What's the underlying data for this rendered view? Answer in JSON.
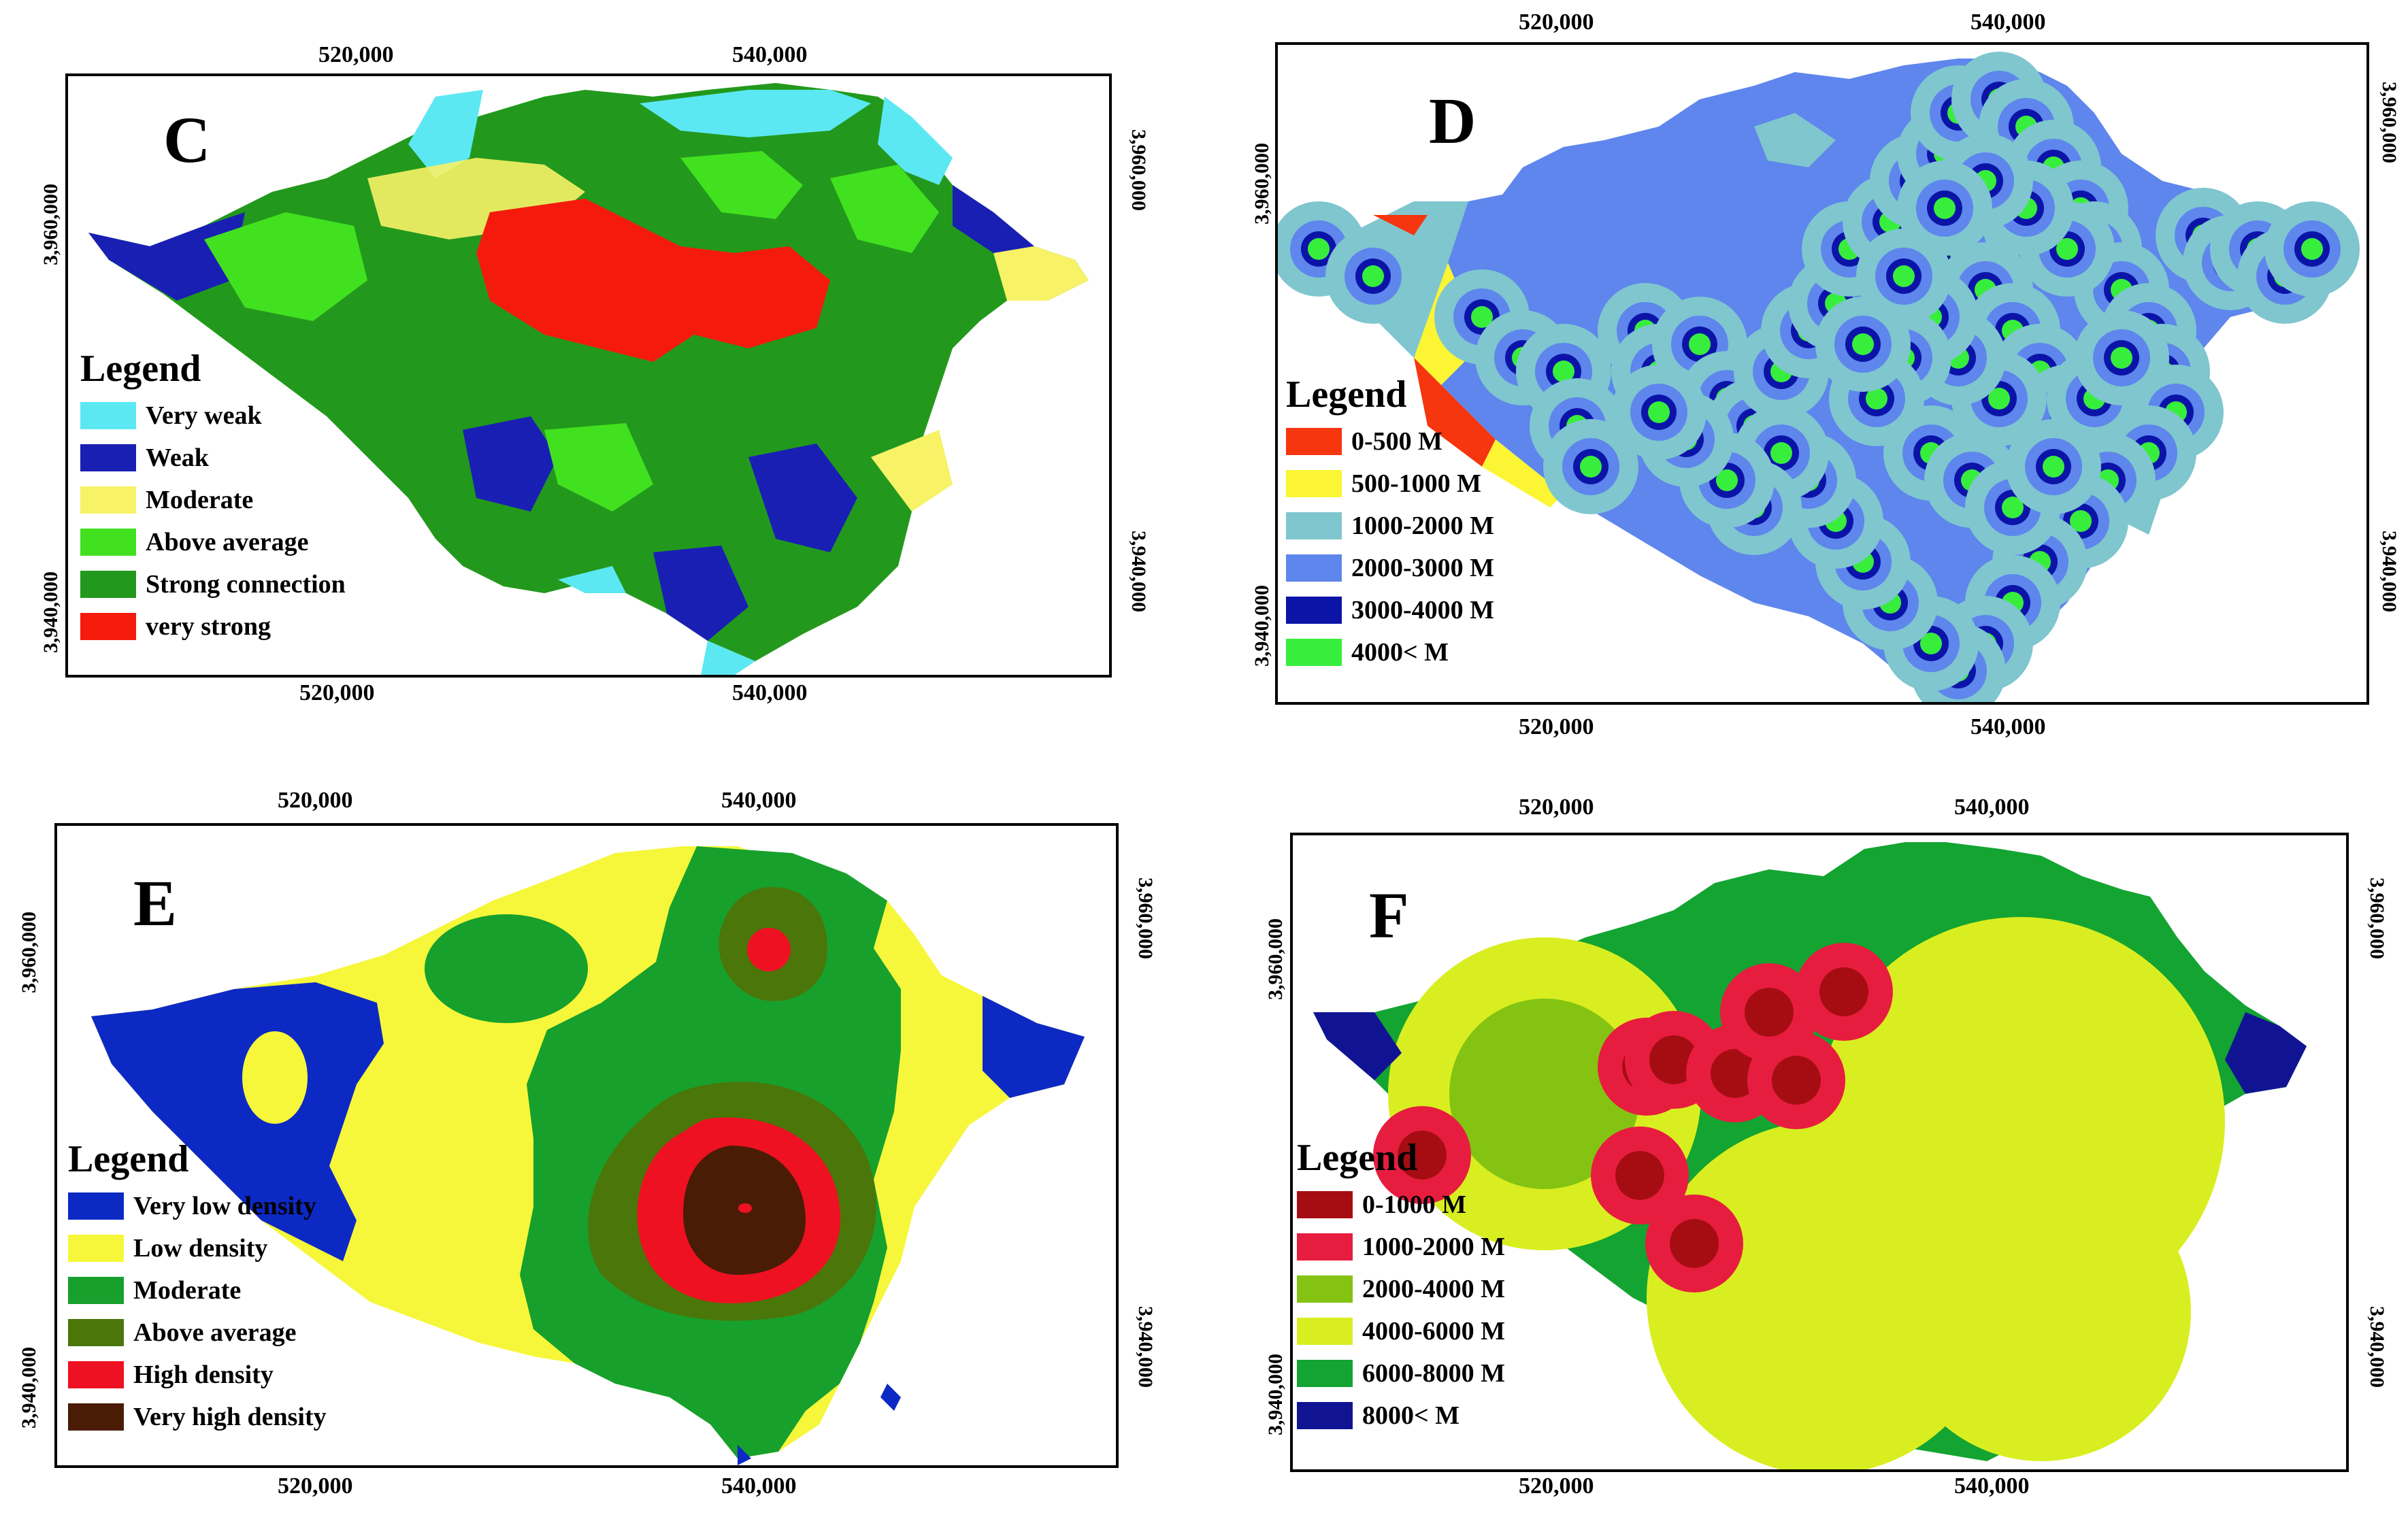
{
  "panels": [
    {
      "id": "C",
      "letter": "C",
      "x_ticks_top": [
        "520,000",
        "540,000"
      ],
      "x_ticks_bottom": [
        "520,000",
        "540,000"
      ],
      "y_ticks_left": [
        "3,960,000",
        "3,940,000"
      ],
      "y_ticks_right": [
        "3,960,000",
        "3,940,000"
      ],
      "legend_title": "Legend",
      "legend": [
        {
          "label": "Very weak",
          "color": "#5ce8f2"
        },
        {
          "label": "Weak",
          "color": "#1a1fb4"
        },
        {
          "label": "Moderate",
          "color": "#f8f267"
        },
        {
          "label": "Above average",
          "color": "#41e11f"
        },
        {
          "label": "Strong connection",
          "color": "#22991c"
        },
        {
          "label": "very strong",
          "color": "#f51b0c"
        }
      ]
    },
    {
      "id": "D",
      "letter": "D",
      "x_ticks_top": [
        "520,000",
        "540,000"
      ],
      "x_ticks_bottom": [
        "520,000",
        "540,000"
      ],
      "y_ticks_left": [
        "3,960,000",
        "3,940,000"
      ],
      "y_ticks_right": [
        "3,960,000",
        "3,940,000"
      ],
      "legend_title": "Legend",
      "legend": [
        {
          "label": "0-500 M",
          "color": "#f5360f"
        },
        {
          "label": "500-1000 M",
          "color": "#fbf534"
        },
        {
          "label": "1000-2000 M",
          "color": "#7fc6cf"
        },
        {
          "label": "2000-3000 M",
          "color": "#5e86ec"
        },
        {
          "label": "3000-4000 M",
          "color": "#0c14a8"
        },
        {
          "label": "4000< M",
          "color": "#38ee3d"
        }
      ]
    },
    {
      "id": "E",
      "letter": "E",
      "x_ticks_top": [
        "520,000",
        "540,000"
      ],
      "x_ticks_bottom": [
        "520,000",
        "540,000"
      ],
      "y_ticks_left": [
        "3,960,000",
        "3,940,000"
      ],
      "y_ticks_right": [
        "3,960,000",
        "3,940,000"
      ],
      "legend_title": "Legend",
      "legend": [
        {
          "label": "Very low density",
          "color": "#0d29c4"
        },
        {
          "label": "Low density",
          "color": "#f6f73a"
        },
        {
          "label": "Moderate",
          "color": "#17a02c"
        },
        {
          "label": "Above average",
          "color": "#4b760a"
        },
        {
          "label": "High density",
          "color": "#ee1121"
        },
        {
          "label": "Very high density",
          "color": "#4a1c05"
        }
      ]
    },
    {
      "id": "F",
      "letter": "F",
      "x_ticks_top": [
        "520,000",
        "540,000"
      ],
      "x_ticks_bottom": [
        "520,000",
        "540,000"
      ],
      "y_ticks_left": [
        "3,960,000",
        "3,940,000"
      ],
      "y_ticks_right": [
        "3,960,000",
        "3,940,000"
      ],
      "legend_title": "Legend",
      "legend": [
        {
          "label": "0-1000 M",
          "color": "#a60d12"
        },
        {
          "label": "1000-2000 M",
          "color": "#e71d3f"
        },
        {
          "label": "2000-4000 M",
          "color": "#84c312"
        },
        {
          "label": "4000-6000 M",
          "color": "#d9ee20"
        },
        {
          "label": "6000-8000 M",
          "color": "#13a431"
        },
        {
          "label": "8000< M",
          "color": "#101493"
        }
      ]
    }
  ]
}
